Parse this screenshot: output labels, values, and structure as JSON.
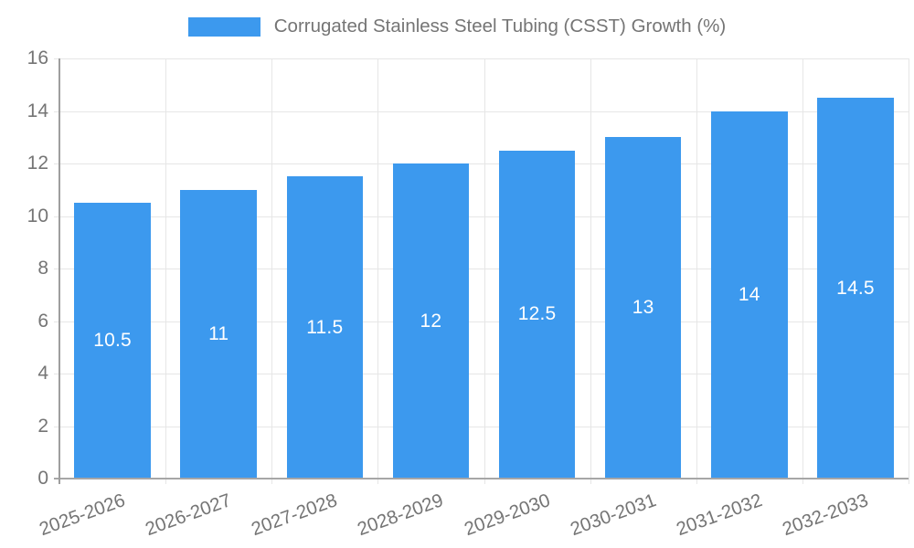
{
  "chart_data": {
    "type": "bar",
    "title": "Corrugated Stainless Steel Tubing (CSST) Growth (%)",
    "categories": [
      "2025-2026",
      "2026-2027",
      "2027-2028",
      "2028-2029",
      "2029-2030",
      "2030-2031",
      "2031-2032",
      "2032-2033"
    ],
    "series": [
      {
        "name": "Corrugated Stainless Steel Tubing (CSST) Growth (%)",
        "values": [
          10.5,
          11,
          11.5,
          12,
          12.5,
          13,
          14,
          14.5
        ]
      }
    ],
    "bar_labels": [
      "10.5",
      "11",
      "11.5",
      "12",
      "12.5",
      "13",
      "14",
      "14.5"
    ],
    "xlabel": "",
    "ylabel": "",
    "ylim": [
      0,
      16
    ],
    "yticks": [
      0,
      2,
      4,
      6,
      8,
      10,
      12,
      14,
      16
    ],
    "grid": true,
    "legend_position": "top-center",
    "x_label_rotation_deg": -20,
    "colors": {
      "bar": "#3c99ee",
      "bar_label": "#ffffff",
      "grid": "#e6e6e6",
      "axis": "#a0a0a0",
      "tick_text": "#757575",
      "legend_text": "#757575",
      "background": "#ffffff"
    }
  }
}
